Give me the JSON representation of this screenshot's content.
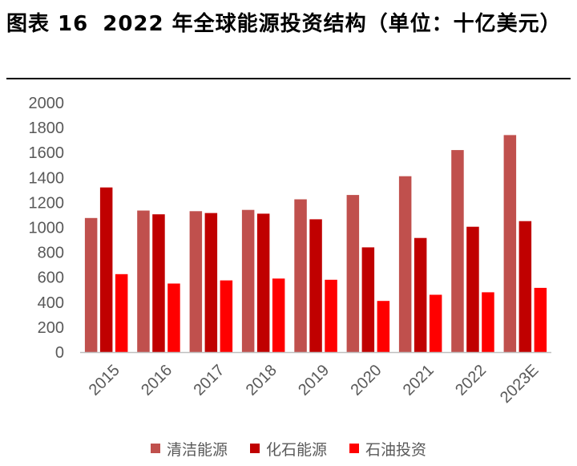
{
  "figure": {
    "label": "图表 16",
    "title": "2022 年全球能源投资结构（单位：十亿美元）"
  },
  "chart_data": {
    "type": "bar",
    "title": "2022 年全球能源投资结构（单位：十亿美元）",
    "categories": [
      "2015",
      "2016",
      "2017",
      "2018",
      "2019",
      "2020",
      "2021",
      "2022",
      "2023E"
    ],
    "series": [
      {
        "name": "清洁能源",
        "color": "#c0504d",
        "values": [
          1075,
          1135,
          1130,
          1140,
          1225,
          1260,
          1410,
          1620,
          1740
        ]
      },
      {
        "name": "化石能源",
        "color": "#c00000",
        "values": [
          1320,
          1105,
          1115,
          1110,
          1065,
          840,
          915,
          1005,
          1050
        ]
      },
      {
        "name": "石油投资",
        "color": "#ff0000",
        "values": [
          625,
          550,
          575,
          590,
          580,
          410,
          460,
          480,
          515
        ]
      }
    ],
    "yticks": [
      "0",
      "200",
      "400",
      "600",
      "800",
      "1000",
      "1200",
      "1400",
      "1600",
      "1800",
      "2000"
    ],
    "ylim": [
      0,
      2000
    ],
    "xlabel": "",
    "ylabel": "",
    "grid": false,
    "legend_position": "bottom"
  }
}
